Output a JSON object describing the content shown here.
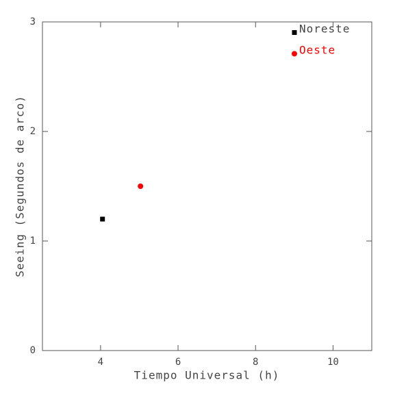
{
  "chart_data": {
    "type": "scatter",
    "x_label": "Tiempo Universal (h)",
    "y_label": "Seeing (Segundos de arco)",
    "xlim": [
      2.5,
      11
    ],
    "xticks": [
      4,
      6,
      8,
      10
    ],
    "ylim": [
      0,
      3
    ],
    "yticks": [
      0,
      1,
      2,
      3
    ],
    "legend": "upper right",
    "series": [
      {
        "name": "Noreste",
        "color": "#000000",
        "marker": "square",
        "x": [
          4.05
        ],
        "values": [
          1.2
        ]
      },
      {
        "name": "Oeste",
        "color": "#ff0000",
        "marker": "circle",
        "x": [
          5.03
        ],
        "values": [
          1.5
        ]
      }
    ]
  }
}
